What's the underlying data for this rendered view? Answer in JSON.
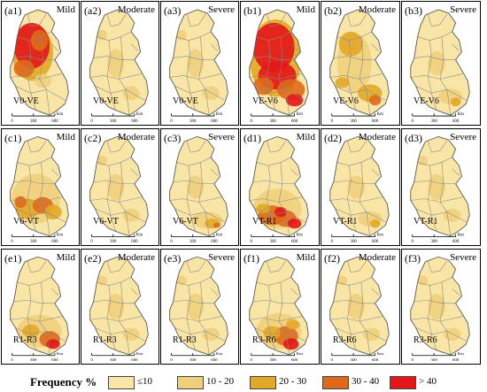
{
  "panels": [
    {
      "tag": "(a1)",
      "severity": "Mild",
      "stage": "V0-VE",
      "pattern": "a1"
    },
    {
      "tag": "(a2)",
      "severity": "Moderate",
      "stage": "V0-VE",
      "pattern": "light"
    },
    {
      "tag": "(a3)",
      "severity": "Severe",
      "stage": "V0-VE",
      "pattern": "light"
    },
    {
      "tag": "(b1)",
      "severity": "Mild",
      "stage": "VE-V6",
      "pattern": "b1"
    },
    {
      "tag": "(b2)",
      "severity": "Moderate",
      "stage": "VE-V6",
      "pattern": "b2"
    },
    {
      "tag": "(b3)",
      "severity": "Severe",
      "stage": "VE-V6",
      "pattern": "southLight"
    },
    {
      "tag": "(c1)",
      "severity": "Mild",
      "stage": "V6-VT",
      "pattern": "c1"
    },
    {
      "tag": "(c2)",
      "severity": "Moderate",
      "stage": "V6-VT",
      "pattern": "light"
    },
    {
      "tag": "(c3)",
      "severity": "Severe",
      "stage": "V6-VT",
      "pattern": "southMed"
    },
    {
      "tag": "(d1)",
      "severity": "Mild",
      "stage": "VT-R1",
      "pattern": "d1"
    },
    {
      "tag": "(d2)",
      "severity": "Moderate",
      "stage": "VT-R1",
      "pattern": "southLight"
    },
    {
      "tag": "(d3)",
      "severity": "Severe",
      "stage": "VT-R1",
      "pattern": "light"
    },
    {
      "tag": "(e1)",
      "severity": "Mild",
      "stage": "R1-R3",
      "pattern": "e1"
    },
    {
      "tag": "(e2)",
      "severity": "Moderate",
      "stage": "R1-R3",
      "pattern": "light"
    },
    {
      "tag": "(e3)",
      "severity": "Severe",
      "stage": "R1-R3",
      "pattern": "light"
    },
    {
      "tag": "(f1)",
      "severity": "Mild",
      "stage": "R3-R6",
      "pattern": "f1"
    },
    {
      "tag": "(f2)",
      "severity": "Moderate",
      "stage": "R3-R6",
      "pattern": "light"
    },
    {
      "tag": "(f3)",
      "severity": "Severe",
      "stage": "R3-R6",
      "pattern": "light"
    }
  ],
  "scalebar": {
    "ticks": [
      "0",
      "300",
      "600"
    ],
    "unit": "Km"
  },
  "legend": {
    "title": "Frequency %",
    "classes": [
      {
        "label": "≤10",
        "color": "#f9e6a6"
      },
      {
        "label": "10 - 20",
        "color": "#f0cf7c"
      },
      {
        "label": "20 - 30",
        "color": "#e2a828"
      },
      {
        "label": "30 - 40",
        "color": "#dd6a1c"
      },
      {
        "label": "> 40",
        "color": "#e3161a"
      }
    ]
  }
}
